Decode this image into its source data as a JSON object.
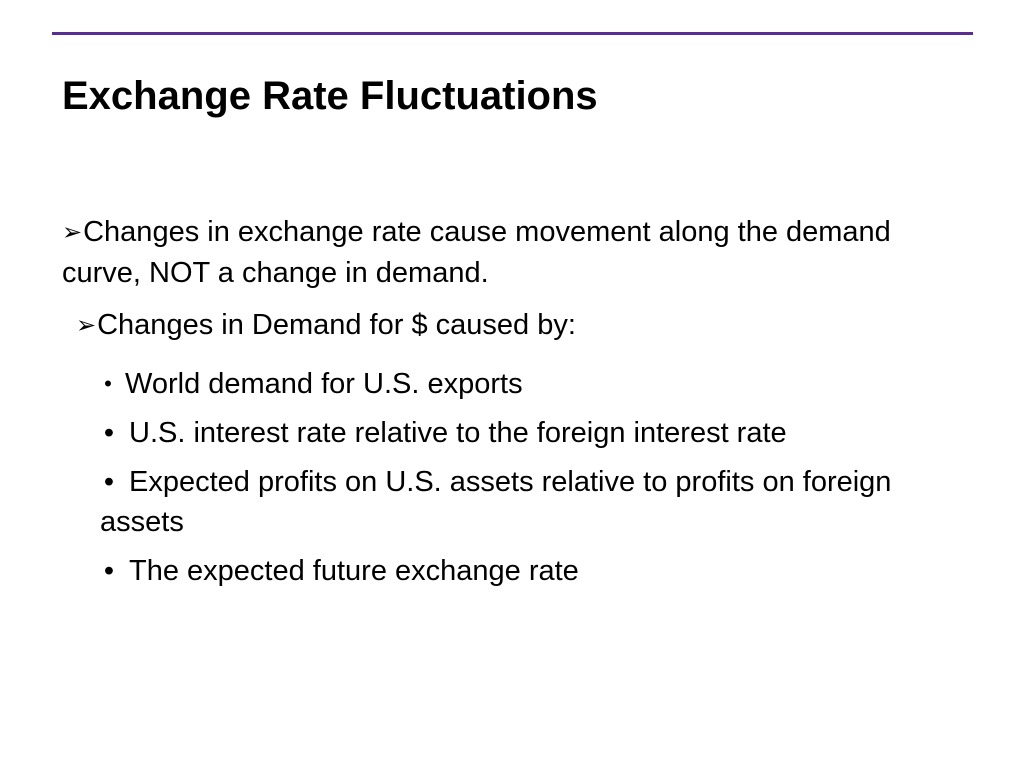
{
  "slide": {
    "title": "Exchange Rate Fluctuations",
    "accent_color": "#5b2c91",
    "main_point": {
      "icon": "arrow-bullet-icon",
      "text": "Changes in exchange rate cause movement along the demand curve, NOT a change in demand."
    },
    "sub_point": {
      "icon": "arrow-bullet-icon",
      "text": "Changes in Demand for $ caused by:"
    },
    "bullets": [
      "World demand for U.S. exports",
      "U.S. interest rate relative to the foreign interest rate",
      "Expected profits on U.S. assets relative to profits on foreign assets",
      "The expected future exchange rate"
    ]
  }
}
